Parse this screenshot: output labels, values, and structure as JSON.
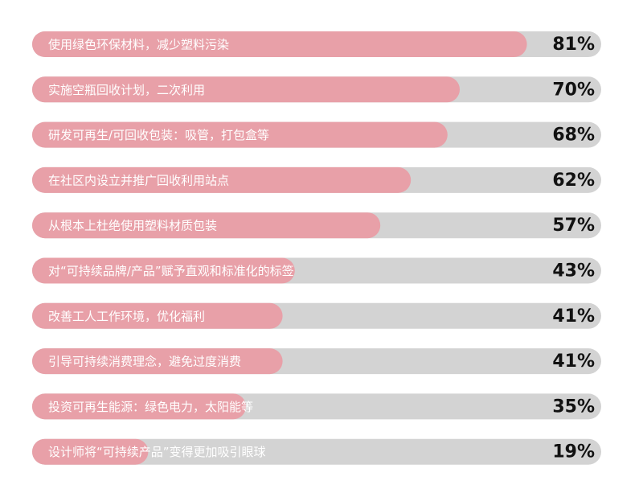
{
  "chart_data": {
    "type": "hbar",
    "categories": [
      "使用绿色环保材料，减少塑料污染",
      "实施空瓶回收计划，二次利用",
      "研发可再生/可回收包装：吸管，打包盒等",
      "在社区内设立并推广回收利用站点",
      "从根本上杜绝使用塑料材质包装",
      "对“可持续品牌/产品”赋予直观和标准化的标签",
      "改善工人工作环境，优化福利",
      "引导可持续消费理念，避免过度消费",
      "投资可再生能源：绿色电力，太阳能等",
      "设计师将“可持续产品”变得更加吸引眼球"
    ],
    "values": [
      81,
      70,
      68,
      62,
      57,
      43,
      41,
      41,
      35,
      19
    ],
    "value_labels": [
      "81%",
      "70%",
      "68%",
      "62%",
      "57%",
      "43%",
      "41%",
      "41%",
      "35%",
      "19%"
    ],
    "xlim": [
      0,
      100
    ],
    "color": "#e8a0a8",
    "track_color": "#d3d3d3"
  }
}
